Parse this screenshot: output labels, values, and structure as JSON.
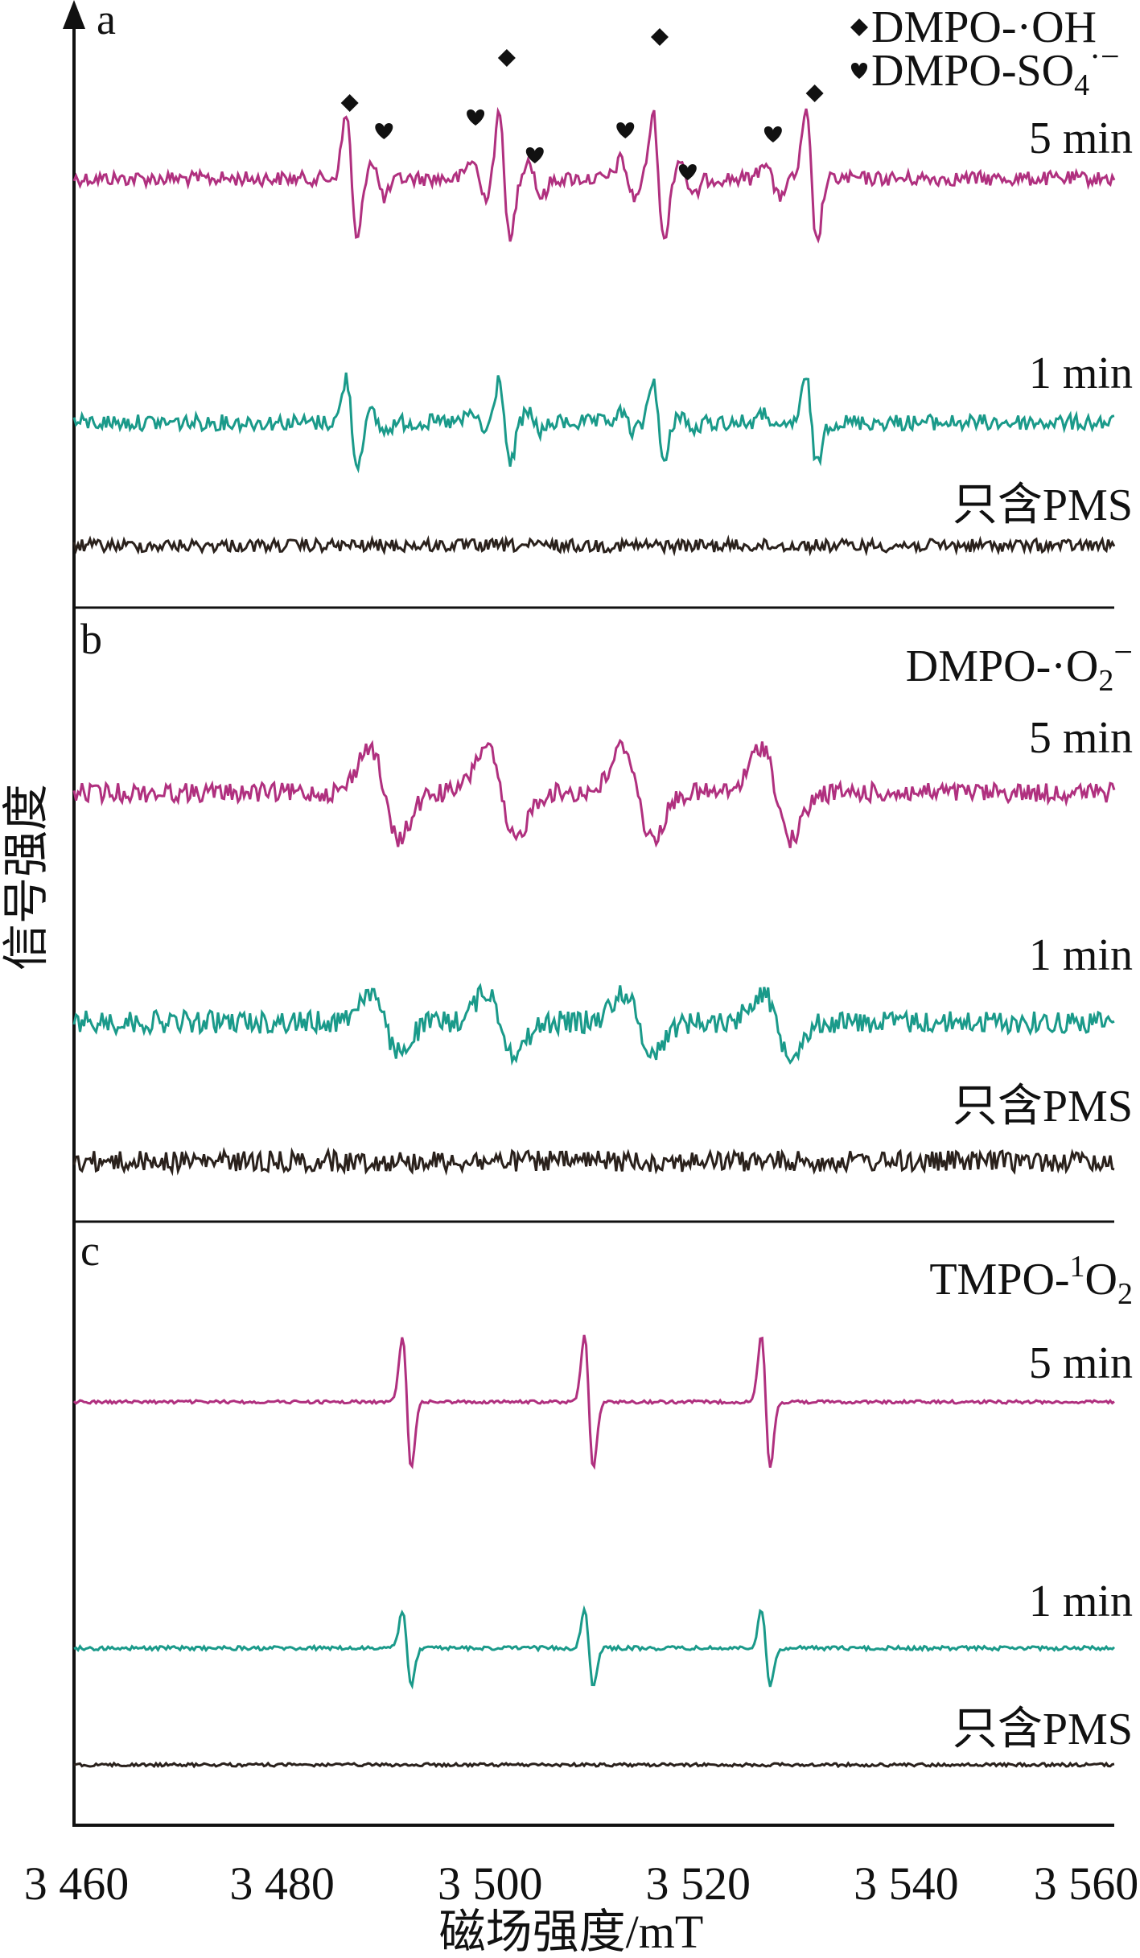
{
  "chart_data": {
    "type": "line",
    "xlabel": "磁场强度/mT",
    "ylabel": "信号强度",
    "xlim": [
      3460,
      3560
    ],
    "xticks": [
      3460,
      3480,
      3500,
      3520,
      3540,
      3560
    ],
    "xtick_labels": [
      "3 460",
      "3 480",
      "3 500",
      "3 520",
      "3 540",
      "3 560"
    ],
    "grid": false,
    "colors": {
      "5 min": "#b0307f",
      "1 min": "#1a9a8a",
      "只含PMS": "#2a211c"
    },
    "panels": [
      {
        "id": "a",
        "letter": "a",
        "legend": [
          {
            "marker": "diamond",
            "text": "DMPO-·OH"
          },
          {
            "marker": "heart",
            "text": "DMPO-SO4·−"
          }
        ],
        "series": [
          {
            "name": "5 min",
            "peaks_oh": [
              3486.7,
              3501.4,
              3516.2,
              3530.9
            ],
            "amp_oh": 0.85,
            "peaks_so4": [
              3489.2,
              3498.9,
              3504.3,
              3513.2,
              3518.9,
              3527.1
            ],
            "amp_so4": 0.25,
            "diamond_markers_x": [
              3486.5,
              3501.6,
              3516.3,
              3531.2
            ],
            "heart_markers_x": [
              3489.8,
              3498.6,
              3504.3,
              3513.0,
              3519.0,
              3527.2
            ]
          },
          {
            "name": "1 min",
            "peaks_oh": [
              3486.7,
              3501.4,
              3516.2,
              3530.9
            ],
            "amp_oh": 0.58,
            "peaks_so4": [
              3489.2,
              3498.9,
              3504.3,
              3513.2,
              3518.9,
              3527.1
            ],
            "amp_so4": 0.12
          },
          {
            "name": "只含PMS",
            "baseline_only": true
          }
        ]
      },
      {
        "id": "b",
        "letter": "b",
        "legend": [
          {
            "marker": "none",
            "text": "DMPO-·O2−"
          }
        ],
        "series": [
          {
            "name": "5 min",
            "peaks": [
              3489.8,
              3501.0,
              3514.2,
              3527.5
            ],
            "amp": 0.62
          },
          {
            "name": "1 min",
            "peaks": [
              3489.8,
              3501.0,
              3514.2,
              3527.5
            ],
            "amp": 0.4
          },
          {
            "name": "只含PMS",
            "baseline_only": true
          }
        ]
      },
      {
        "id": "c",
        "letter": "c",
        "legend": [
          {
            "marker": "none",
            "text": "TMPO-1O2"
          }
        ],
        "series": [
          {
            "name": "5 min",
            "peaks": [
              3492.0,
              3509.5,
              3526.5
            ],
            "amp": 0.88
          },
          {
            "name": "1 min",
            "peaks": [
              3492.0,
              3509.5,
              3526.5
            ],
            "amp": 0.5
          },
          {
            "name": "只含PMS",
            "baseline_only": true
          }
        ]
      }
    ]
  }
}
